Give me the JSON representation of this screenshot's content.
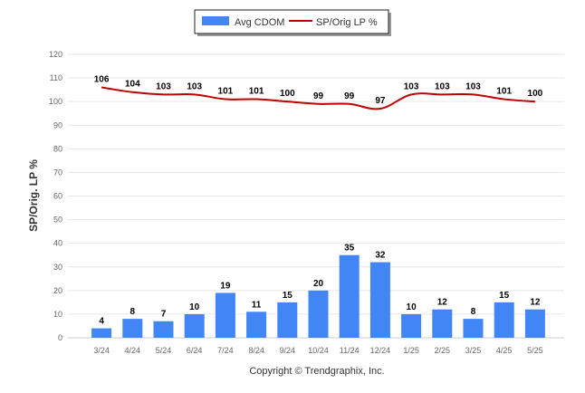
{
  "chart_data": {
    "type": "bar",
    "categories": [
      "3/24",
      "4/24",
      "5/24",
      "6/24",
      "7/24",
      "8/24",
      "9/24",
      "10/24",
      "11/24",
      "12/24",
      "1/25",
      "2/25",
      "3/25",
      "4/25",
      "5/25"
    ],
    "series": [
      {
        "name": "Avg CDOM",
        "type": "bar",
        "color": "#4285F4",
        "values": [
          4,
          8,
          7,
          10,
          19,
          11,
          15,
          20,
          35,
          32,
          10,
          12,
          8,
          15,
          12
        ]
      },
      {
        "name": "SP/Orig LP %",
        "type": "line",
        "color": "#C00000",
        "values": [
          106,
          104,
          103,
          103,
          101,
          101,
          100,
          99,
          99,
          97,
          103,
          103,
          103,
          101,
          100
        ]
      }
    ],
    "ylabel": "SP/Orig. LP %",
    "xlabel": "",
    "ylim": [
      0,
      120
    ],
    "yticks": [
      0,
      10,
      20,
      30,
      40,
      50,
      60,
      70,
      80,
      90,
      100,
      110,
      120
    ],
    "grid": true,
    "legend": "top-center",
    "footer": "Copyright © Trendgraphix, Inc."
  }
}
